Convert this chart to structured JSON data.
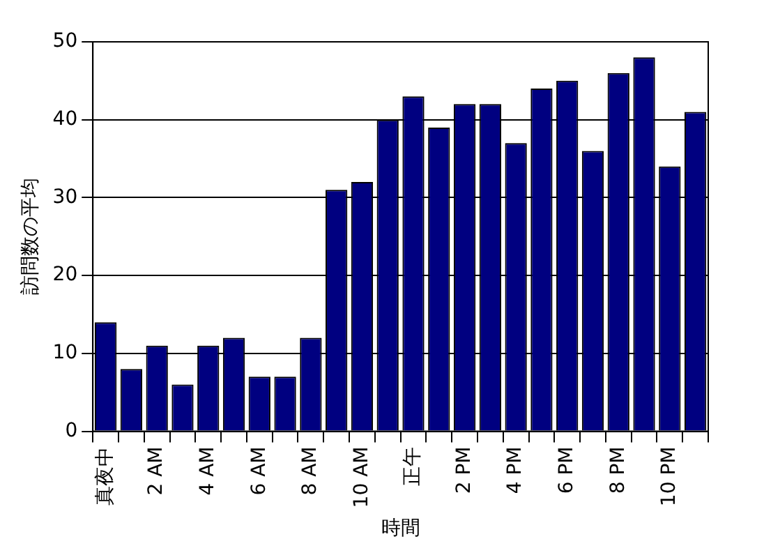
{
  "chart_data": {
    "type": "bar",
    "xlabel": "時間",
    "ylabel": "訪問数の平均",
    "categories": [
      "真夜中",
      null,
      "2 AM",
      null,
      "4 AM",
      null,
      "6 AM",
      null,
      "8 AM",
      null,
      "10 AM",
      null,
      "正午",
      null,
      "2 PM",
      null,
      "4 PM",
      null,
      "6 PM",
      null,
      "8 PM",
      null,
      "10 PM",
      null
    ],
    "values": [
      14,
      8,
      11,
      6,
      11,
      12,
      7,
      7,
      12,
      31,
      32,
      40,
      43,
      39,
      42,
      42,
      37,
      44,
      45,
      36,
      46,
      48,
      34,
      41
    ],
    "color": "#000080",
    "ylim": [
      0,
      50
    ],
    "yticks": [
      0,
      10,
      20,
      30,
      40,
      50
    ],
    "grid": "y",
    "legend": false
  }
}
